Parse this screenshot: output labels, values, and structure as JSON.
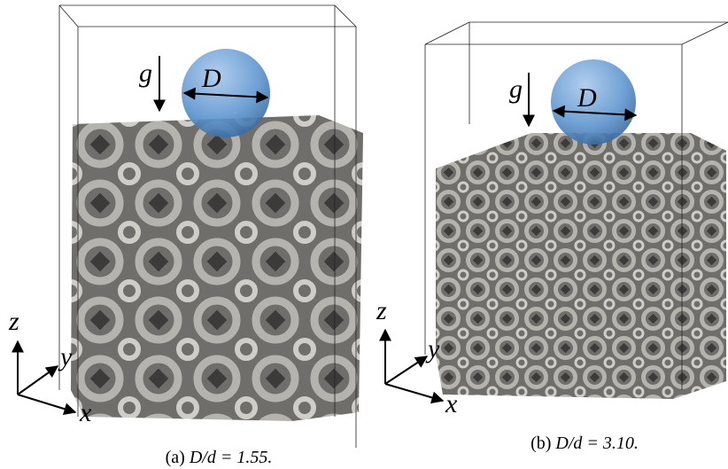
{
  "panels": [
    {
      "caption_label": "(a)",
      "caption_math": "D/d = 1.55.",
      "gravity": "g",
      "diameter": "D",
      "axis_z": "z",
      "axis_y": "y",
      "axis_x": "x"
    },
    {
      "caption_label": "(b)",
      "caption_math": "D/d = 3.10.",
      "gravity": "g",
      "diameter": "D",
      "axis_z": "z",
      "axis_y": "y",
      "axis_x": "x"
    }
  ]
}
